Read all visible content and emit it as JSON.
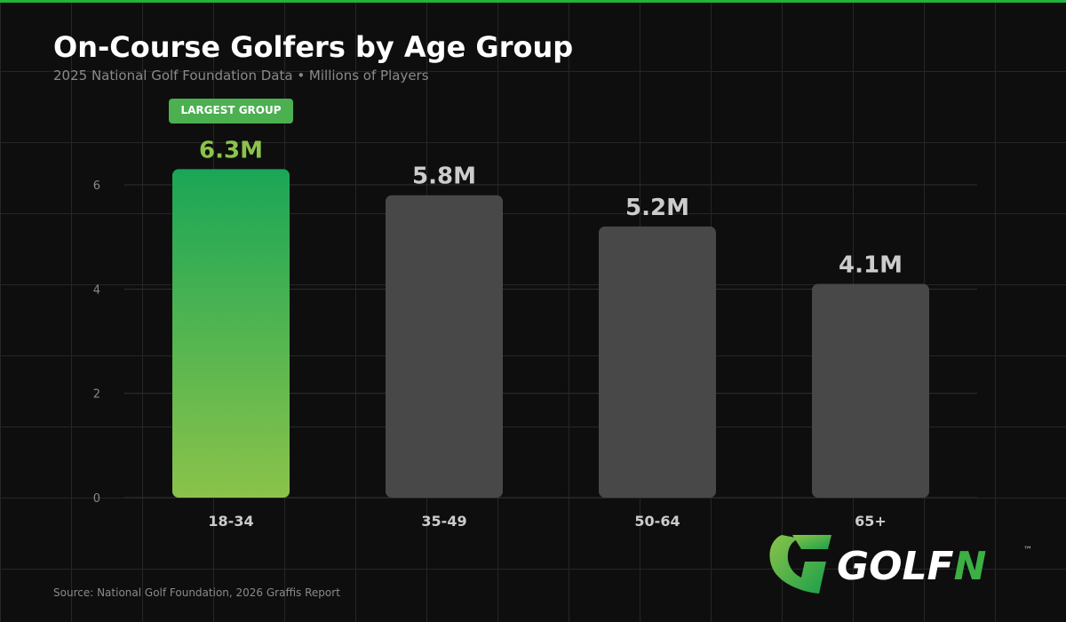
{
  "title": "On-Course Golfers by Age Group",
  "subtitle": "2025 National Golf Foundation Data  •  Millions of Players",
  "source": "Source: National Golf Foundation, 2026 Graffis Report",
  "logo": {
    "text": "GOLFN",
    "trademark": "™"
  },
  "colors": {
    "accent": "#22b33a",
    "highlight_top": "#1aa657",
    "highlight_bottom": "#8bc34a",
    "bar": "#484848",
    "label_highlight": "#8bc34a",
    "label": "#cccccc"
  },
  "chart_data": {
    "type": "bar",
    "title": "On-Course Golfers by Age Group",
    "categories": [
      "18-34",
      "35-49",
      "50-64",
      "65+"
    ],
    "values": [
      6.3,
      5.8,
      5.2,
      4.1
    ],
    "data_labels": [
      "6.3M",
      "5.8M",
      "5.2M",
      "4.1M"
    ],
    "ylim": [
      0,
      6.3
    ],
    "yticks": [
      0,
      2,
      4,
      6
    ],
    "grid": true,
    "highlight_index": 0,
    "annotation": "LARGEST GROUP"
  }
}
